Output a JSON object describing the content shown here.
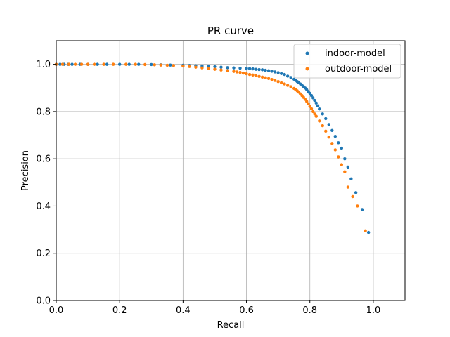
{
  "chart_data": {
    "type": "scatter",
    "title": "PR curve",
    "xlabel": "Recall",
    "ylabel": "Precision",
    "xlim": [
      0.0,
      1.1
    ],
    "ylim": [
      0.0,
      1.1
    ],
    "xticks": [
      "0.0",
      "0.2",
      "0.4",
      "0.6",
      "0.8",
      "1.0"
    ],
    "yticks": [
      "0.0",
      "0.2",
      "0.4",
      "0.6",
      "0.8",
      "1.0"
    ],
    "grid": true,
    "legend_position": "top-right",
    "series": [
      {
        "name": "indoor-model",
        "color": "#1f77b4",
        "x": [
          0.0,
          0.012,
          0.025,
          0.038,
          0.05,
          0.075,
          0.1,
          0.13,
          0.16,
          0.2,
          0.23,
          0.26,
          0.3,
          0.33,
          0.36,
          0.4,
          0.42,
          0.44,
          0.46,
          0.48,
          0.5,
          0.52,
          0.54,
          0.56,
          0.58,
          0.6,
          0.61,
          0.62,
          0.63,
          0.64,
          0.65,
          0.66,
          0.67,
          0.68,
          0.69,
          0.7,
          0.71,
          0.72,
          0.73,
          0.74,
          0.75,
          0.755,
          0.76,
          0.765,
          0.77,
          0.775,
          0.78,
          0.785,
          0.79,
          0.795,
          0.8,
          0.805,
          0.81,
          0.815,
          0.82,
          0.825,
          0.83,
          0.84,
          0.85,
          0.86,
          0.87,
          0.88,
          0.89,
          0.9,
          0.91,
          0.92,
          0.93,
          0.945,
          0.965,
          0.985
        ],
        "y": [
          1.0,
          1.0,
          1.0,
          1.0,
          1.0,
          1.0,
          1.0,
          1.0,
          1.0,
          1.0,
          1.0,
          1.0,
          0.999,
          0.998,
          0.997,
          0.996,
          0.995,
          0.994,
          0.993,
          0.992,
          0.99,
          0.988,
          0.986,
          0.985,
          0.984,
          0.983,
          0.982,
          0.981,
          0.979,
          0.978,
          0.977,
          0.975,
          0.973,
          0.971,
          0.968,
          0.965,
          0.961,
          0.957,
          0.95,
          0.944,
          0.937,
          0.932,
          0.927,
          0.922,
          0.917,
          0.912,
          0.906,
          0.9,
          0.893,
          0.885,
          0.877,
          0.868,
          0.858,
          0.847,
          0.836,
          0.824,
          0.811,
          0.79,
          0.77,
          0.745,
          0.72,
          0.695,
          0.668,
          0.645,
          0.6,
          0.565,
          0.515,
          0.457,
          0.385,
          0.288
        ]
      },
      {
        "name": "outdoor-model",
        "color": "#ff7f0e",
        "x": [
          0.0,
          0.02,
          0.04,
          0.06,
          0.08,
          0.1,
          0.12,
          0.15,
          0.18,
          0.22,
          0.25,
          0.28,
          0.31,
          0.33,
          0.35,
          0.37,
          0.4,
          0.42,
          0.44,
          0.46,
          0.48,
          0.5,
          0.52,
          0.54,
          0.56,
          0.57,
          0.58,
          0.59,
          0.6,
          0.61,
          0.62,
          0.63,
          0.64,
          0.65,
          0.66,
          0.67,
          0.68,
          0.69,
          0.7,
          0.71,
          0.72,
          0.73,
          0.74,
          0.75,
          0.755,
          0.76,
          0.765,
          0.77,
          0.775,
          0.78,
          0.785,
          0.79,
          0.795,
          0.8,
          0.805,
          0.81,
          0.815,
          0.82,
          0.83,
          0.84,
          0.85,
          0.86,
          0.87,
          0.88,
          0.89,
          0.9,
          0.91,
          0.92,
          0.935,
          0.95,
          0.975
        ],
        "y": [
          1.0,
          1.0,
          1.0,
          1.0,
          1.0,
          1.0,
          1.0,
          1.0,
          1.0,
          1.0,
          1.0,
          0.999,
          0.998,
          0.997,
          0.996,
          0.995,
          0.993,
          0.991,
          0.988,
          0.985,
          0.982,
          0.979,
          0.976,
          0.973,
          0.97,
          0.968,
          0.966,
          0.963,
          0.96,
          0.957,
          0.955,
          0.952,
          0.949,
          0.946,
          0.943,
          0.94,
          0.936,
          0.932,
          0.927,
          0.922,
          0.917,
          0.911,
          0.905,
          0.898,
          0.893,
          0.888,
          0.882,
          0.875,
          0.868,
          0.86,
          0.852,
          0.843,
          0.833,
          0.822,
          0.812,
          0.8,
          0.79,
          0.78,
          0.76,
          0.74,
          0.717,
          0.692,
          0.665,
          0.638,
          0.608,
          0.575,
          0.545,
          0.48,
          0.44,
          0.4,
          0.295
        ]
      }
    ]
  }
}
